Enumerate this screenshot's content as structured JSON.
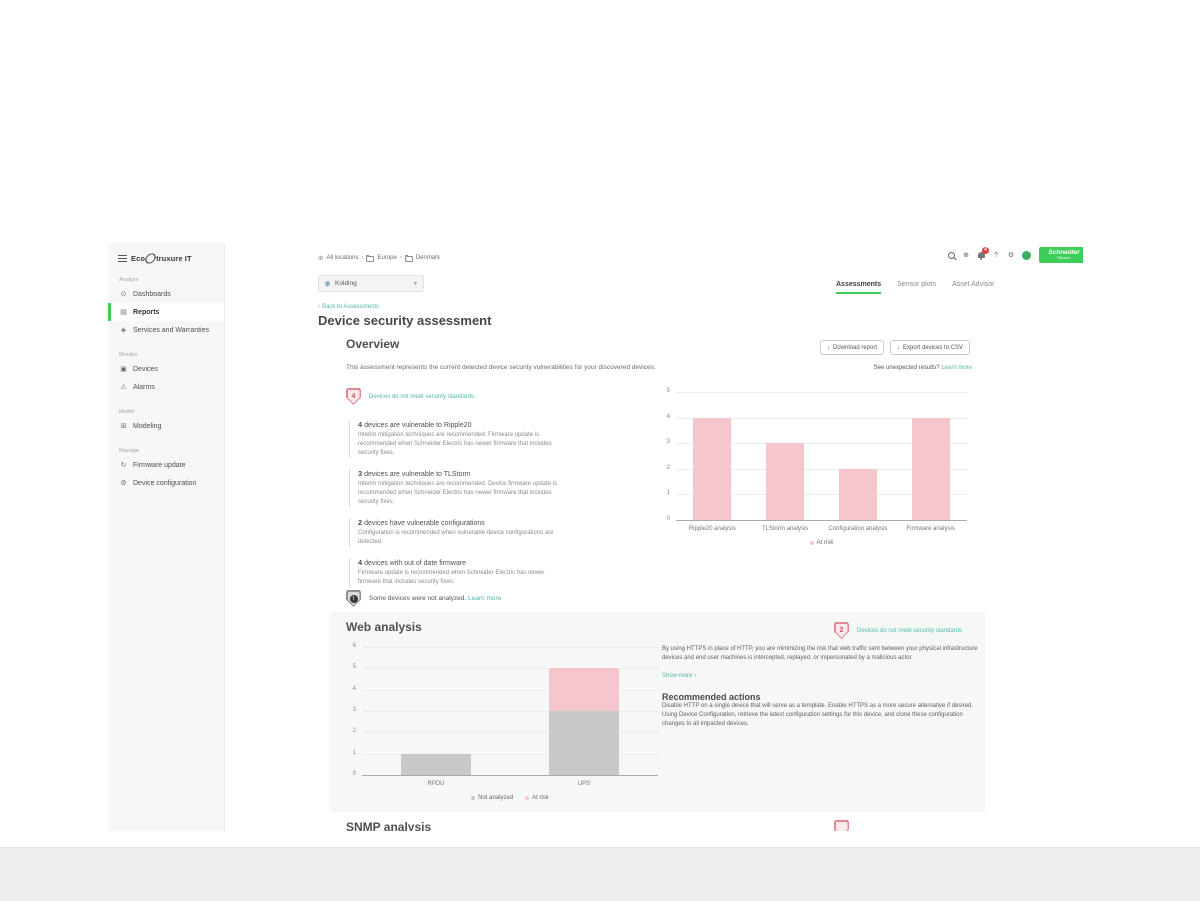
{
  "icons": {
    "globe": "⊕",
    "help": "?",
    "gear": "⚙",
    "chevron_right": "›",
    "chevron_down": "▾",
    "chevron_left": "‹",
    "download": "↓",
    "dashboards": "⊙",
    "reports": "▤",
    "services": "◈",
    "devices": "▣",
    "alarms": "⚠",
    "modeling": "⊞",
    "firmware": "↻",
    "config": "⚙",
    "exclamation": "!"
  },
  "colors": {
    "accent_green": "#3dcd58",
    "link_teal": "#54b7aa",
    "at_risk_pink": "#f6c6cd",
    "not_analyzed_gray": "#c8c8c8",
    "alert_red": "#e23b3b"
  },
  "sidebar": {
    "logo_eco": "Eco",
    "logo_rest": "truxure IT",
    "sections": [
      {
        "label": "Analyze",
        "items": [
          {
            "label": "Dashboards"
          },
          {
            "label": "Reports"
          },
          {
            "label": "Services and Warranties"
          }
        ]
      },
      {
        "label": "Monitor",
        "items": [
          {
            "label": "Devices"
          },
          {
            "label": "Alarms"
          }
        ]
      },
      {
        "label": "Model",
        "items": [
          {
            "label": "Modeling"
          }
        ]
      },
      {
        "label": "Manage",
        "items": [
          {
            "label": "Firmware update"
          },
          {
            "label": "Device configuration"
          }
        ]
      }
    ]
  },
  "header": {
    "breadcrumb": [
      "All locations",
      "Europe",
      "Denmark"
    ],
    "location_selector": "Kolding",
    "notification_count": "4",
    "brand_line1": "Schneider",
    "brand_line2": "Electric"
  },
  "tabs": [
    {
      "label": "Assessments",
      "active": true
    },
    {
      "label": "Sensor plots",
      "active": false
    },
    {
      "label": "Asset Advisor",
      "active": false
    }
  ],
  "page": {
    "back_link": "Back to Assessments",
    "title": "Device security assessment"
  },
  "overview": {
    "heading": "Overview",
    "download_button": "Download report",
    "export_button": "Export devices to CSV",
    "intro": "This assessment represents the current detected device security vulnerabilities for your discovered devices.",
    "unexpected_text": "See unexpected results?",
    "unexpected_link": "Learn more",
    "badge_count": "4",
    "badge_label": "Devices do not meet security standards",
    "items": [
      {
        "count": "4",
        "title": "devices are vulnerable to Ripple20",
        "desc": "Interim mitigation techniques are recommended. Firmware update is recommended when Schneider Electric has newer firmware that includes security fixes."
      },
      {
        "count": "3",
        "title": "devices are vulnerable to TLStorm",
        "desc": "Interim mitigation techniques are recommended. Device firmware update is recommended when Schneider Electric has newer firmware that includes security fixes."
      },
      {
        "count": "2",
        "title": "devices have vulnerable configurations",
        "desc": "Configuration is recommended when vulnerable device configurations are detected."
      },
      {
        "count": "4",
        "title": "devices with out of date firmware",
        "desc": "Firmware update is recommended when Schneider Electric has newer firmware that includes security fixes."
      }
    ],
    "not_analyzed_text": "Some devices were not analyzed.",
    "not_analyzed_link": "Learn more"
  },
  "web_analysis": {
    "heading": "Web analysis",
    "badge_count": "2",
    "badge_label": "Devices do not meet security standards",
    "paragraph": "By using HTTPS in place of HTTP, you are minimizing the risk that web traffic sent between your physical infrastructure devices and end user machines is intercepted, replayed, or impersonated by a malicious actor.",
    "show_more": "Show more ›",
    "recommended_heading": "Recommended actions",
    "recommended_text": "Disable HTTP on a single device that will serve as a template. Enable HTTPS as a more secure alternative if desired. Using Device Configuration, retrieve the latest configuration settings for this device, and clone these configuration changes to all impacted devices."
  },
  "snmp": {
    "heading": "SNMP analysis"
  },
  "chart_data": [
    {
      "type": "bar",
      "title": "",
      "categories": [
        "Ripple20 analysis",
        "TLStorm analysis",
        "Configuration analysis",
        "Firmware analysis"
      ],
      "series": [
        {
          "name": "At risk",
          "values": [
            4,
            3,
            2,
            4
          ],
          "color": "#f6c6cd"
        }
      ],
      "xlabel": "",
      "ylabel": "",
      "ylim": [
        0,
        5
      ],
      "yticks": [
        0,
        1,
        2,
        3,
        4,
        5
      ],
      "grid": true,
      "legend_position": "bottom"
    },
    {
      "type": "stacked-bar",
      "title": "",
      "categories": [
        "RPDU",
        "UPS"
      ],
      "series": [
        {
          "name": "Not analyzed",
          "values": [
            1,
            3
          ],
          "color": "#c8c8c8"
        },
        {
          "name": "At risk",
          "values": [
            0,
            2
          ],
          "color": "#f6c6cd"
        }
      ],
      "xlabel": "",
      "ylabel": "",
      "ylim": [
        0,
        6
      ],
      "yticks": [
        0,
        1,
        2,
        3,
        4,
        5,
        6
      ],
      "grid": true,
      "legend_position": "bottom"
    }
  ]
}
